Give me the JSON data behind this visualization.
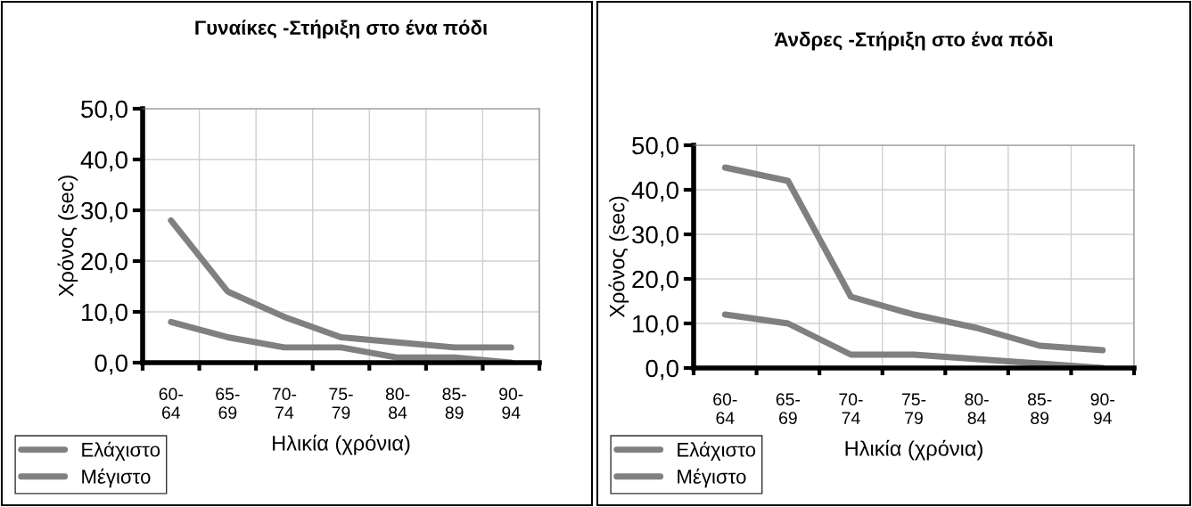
{
  "chart_data": [
    {
      "type": "line",
      "title": "Γυναίκες -Στήριξη στο ένα πόδι",
      "xlabel": "Ηλικία (χρόνια)",
      "ylabel": "Χρόνος (sec)",
      "categories": [
        "60-64",
        "65-69",
        "70-74",
        "75-79",
        "80-84",
        "85-89",
        "90-94"
      ],
      "series": [
        {
          "name": "Ελάχιστο",
          "color": "#808080",
          "values": [
            8,
            5,
            3,
            3,
            1,
            1,
            0
          ]
        },
        {
          "name": "Μέγιστο",
          "color": "#808080",
          "values": [
            28,
            14,
            9,
            5,
            4,
            3,
            3
          ]
        }
      ],
      "ylim": [
        0,
        50
      ],
      "yticks": [
        {
          "value": 0,
          "label": "0,0"
        },
        {
          "value": 10,
          "label": "10,0"
        },
        {
          "value": 20,
          "label": "20,0"
        },
        {
          "value": 30,
          "label": "30,0"
        },
        {
          "value": 40,
          "label": "40,0"
        },
        {
          "value": 50,
          "label": "50,0"
        }
      ],
      "grid": true,
      "legend": "bottom left",
      "marker": "none",
      "line_style": "solid"
    },
    {
      "type": "line",
      "title": "Άνδρες -Στήριξη στο ένα πόδι",
      "xlabel": "Ηλικία (χρόνια)",
      "ylabel": "Χρόνος (sec)",
      "categories": [
        "60-64",
        "65-69",
        "70-74",
        "75-79",
        "80-84",
        "85-89",
        "90-94"
      ],
      "series": [
        {
          "name": "Ελάχιστο",
          "color": "#808080",
          "values": [
            12,
            10,
            3,
            3,
            2,
            1,
            0
          ]
        },
        {
          "name": "Μέγιστο",
          "color": "#808080",
          "values": [
            45,
            42,
            16,
            12,
            9,
            5,
            4
          ]
        }
      ],
      "ylim": [
        0,
        50
      ],
      "yticks": [
        {
          "value": 0,
          "label": "0,0"
        },
        {
          "value": 10,
          "label": "10,0"
        },
        {
          "value": 20,
          "label": "20,0"
        },
        {
          "value": 30,
          "label": "30,0"
        },
        {
          "value": 40,
          "label": "40,0"
        },
        {
          "value": 50,
          "label": "50,0"
        }
      ],
      "grid": true,
      "legend": "bottom left",
      "marker": "none",
      "line_style": "solid"
    }
  ]
}
